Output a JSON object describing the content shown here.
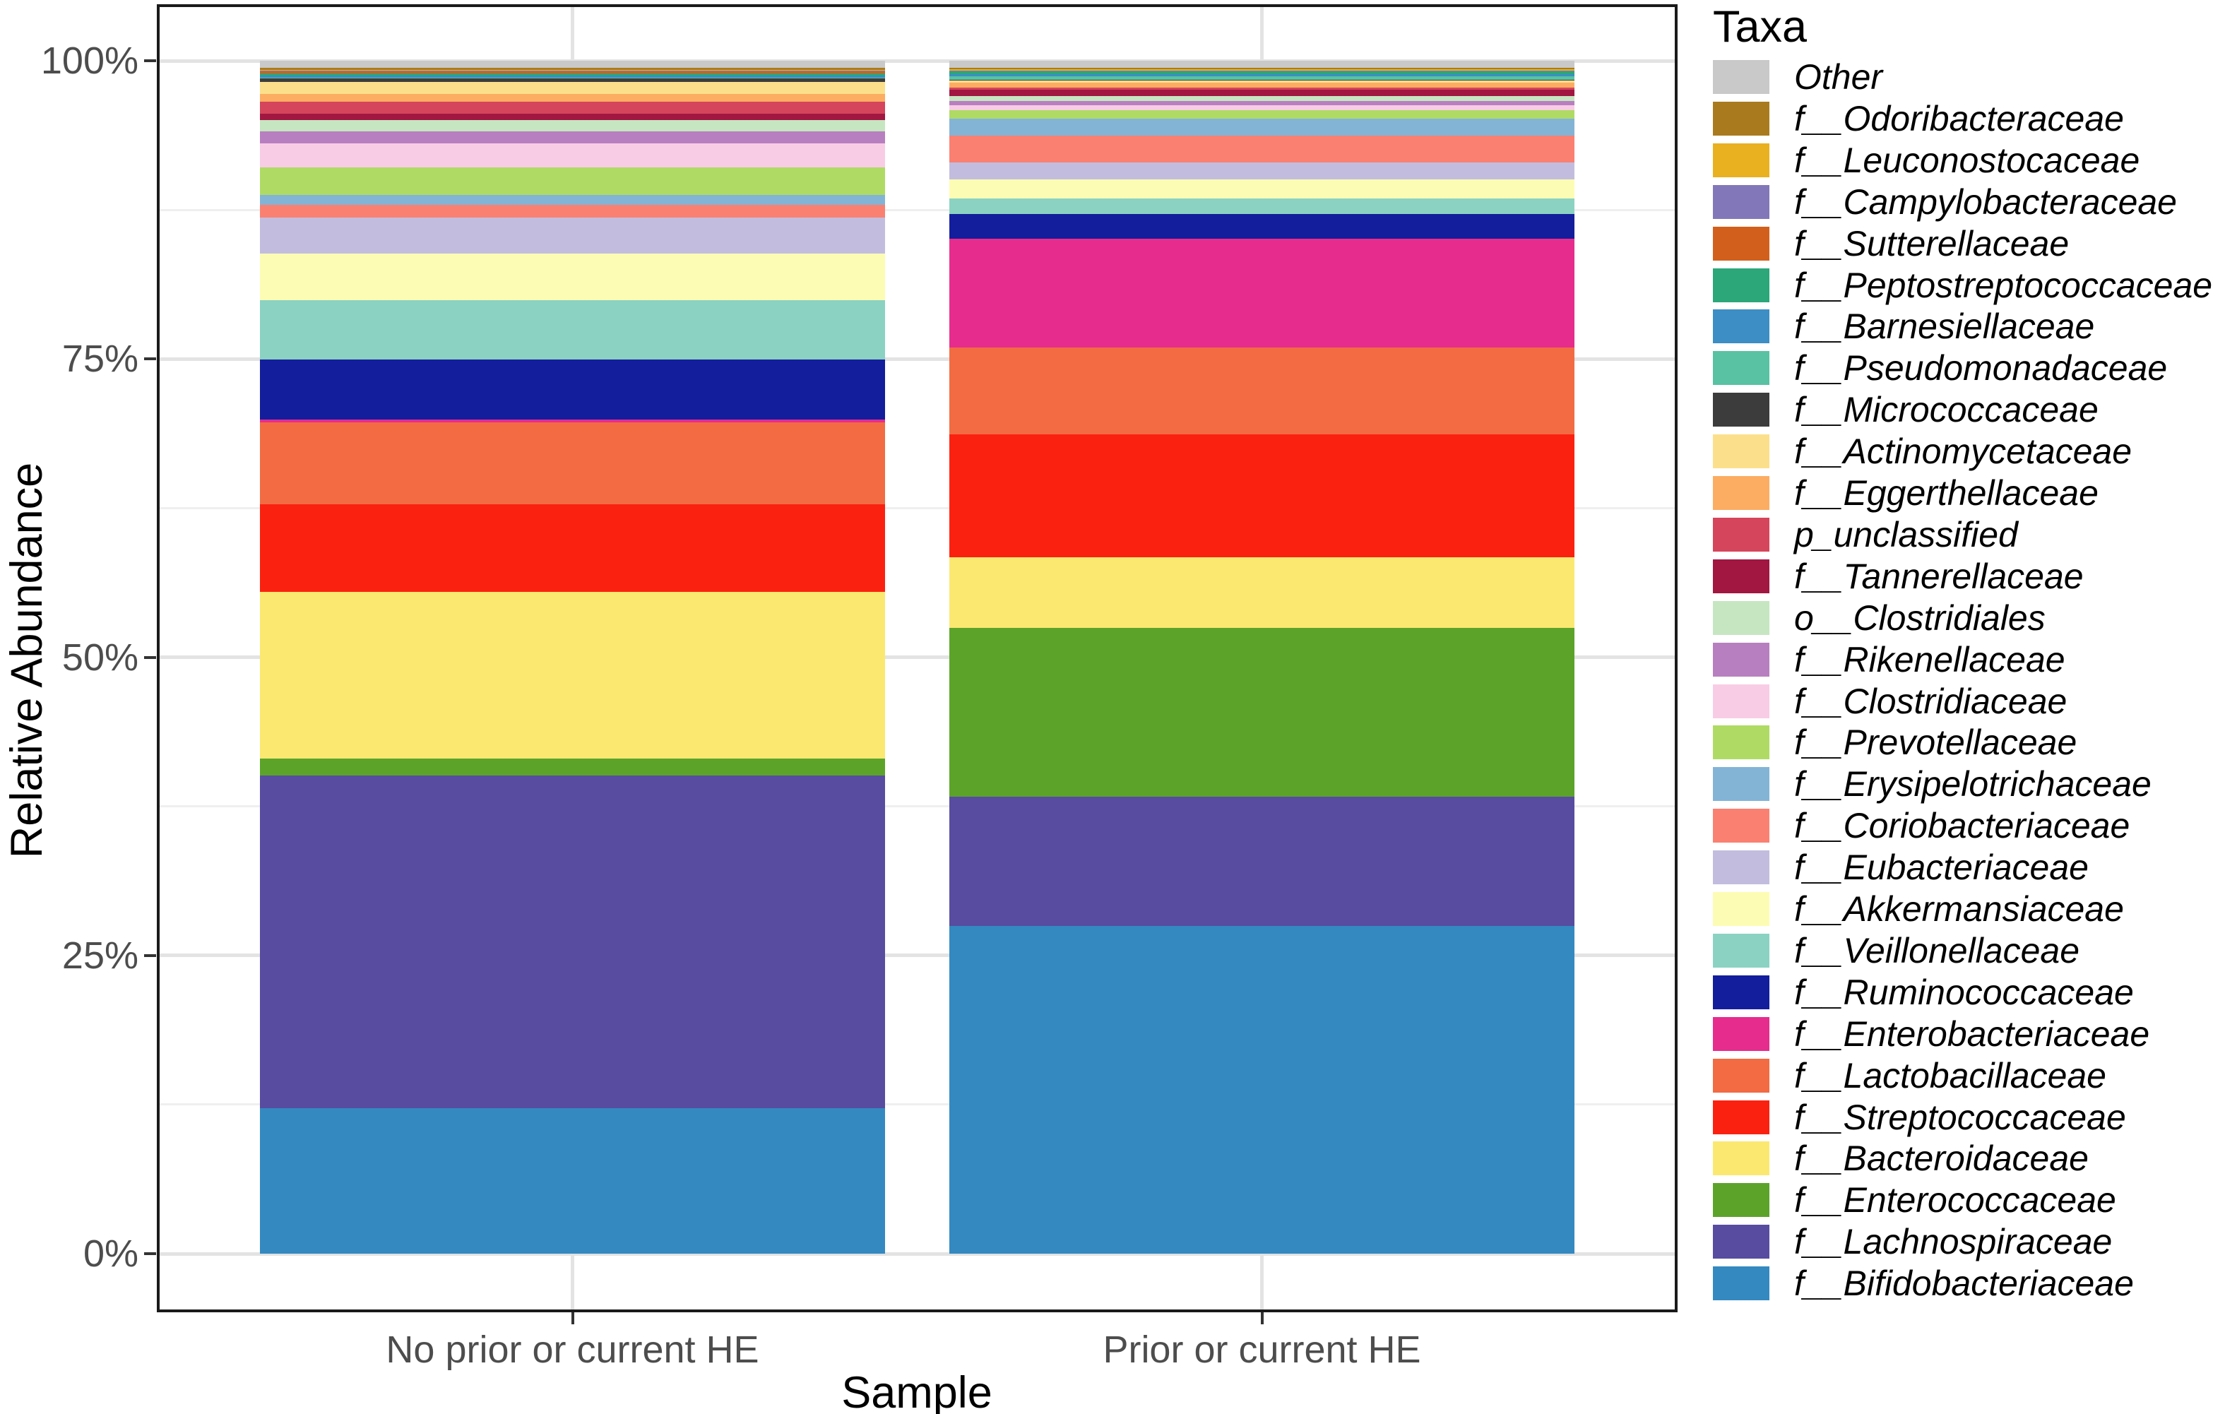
{
  "chart_data": {
    "type": "bar",
    "stacked": true,
    "percent_scale": true,
    "title": "",
    "xlabel": "Sample",
    "ylabel": "Relative Abundance",
    "legend_title": "Taxa",
    "legend_position": "right",
    "grid": "major-and-minor",
    "ylim": [
      0,
      100
    ],
    "y_ticks": [
      {
        "label": "0%",
        "value": 0
      },
      {
        "label": "25%",
        "value": 25
      },
      {
        "label": "50%",
        "value": 50
      },
      {
        "label": "75%",
        "value": 75
      },
      {
        "label": "100%",
        "value": 100
      }
    ],
    "categories": [
      "No prior or current HE",
      "Prior or current HE"
    ],
    "series": [
      {
        "name": "Other",
        "color": "#c9c9c9",
        "values": [
          0.6,
          0.6
        ]
      },
      {
        "name": "f__Odoribacteraceae",
        "color": "#a97b1e",
        "values": [
          0.15,
          0.1
        ]
      },
      {
        "name": "f__Leuconostocaceae",
        "color": "#e9b01f",
        "values": [
          0.05,
          0.1
        ]
      },
      {
        "name": "f__Campylobacteraceae",
        "color": "#8177b9",
        "values": [
          0.05,
          0.05
        ]
      },
      {
        "name": "f__Sutterellaceae",
        "color": "#d2601c",
        "values": [
          0.2,
          0.05
        ]
      },
      {
        "name": "f__Peptostreptococcaceae",
        "color": "#2ba77a",
        "values": [
          0.2,
          0.2
        ]
      },
      {
        "name": "f__Barnesiellaceae",
        "color": "#3c8ec4",
        "values": [
          0.2,
          0.2
        ]
      },
      {
        "name": "f__Pseudomonadaceae",
        "color": "#58c2a2",
        "values": [
          0.05,
          0.3
        ]
      },
      {
        "name": "f__Micrococcaceae",
        "color": "#3c3c3c",
        "values": [
          0.3,
          0.05
        ]
      },
      {
        "name": "f__Actinomycetaceae",
        "color": "#fcdf8b",
        "values": [
          1.0,
          0.2
        ]
      },
      {
        "name": "f__Eggerthellaceae",
        "color": "#fcad62",
        "values": [
          0.65,
          0.4
        ]
      },
      {
        "name": "p_unclassified",
        "color": "#d5455b",
        "values": [
          1.0,
          0.2
        ]
      },
      {
        "name": "f__Tannerellaceae",
        "color": "#a11742",
        "values": [
          0.5,
          0.5
        ]
      },
      {
        "name": "o__Clostridiales",
        "color": "#c6e6c1",
        "values": [
          1.0,
          0.4
        ]
      },
      {
        "name": "f__Rikenellaceae",
        "color": "#b87fc0",
        "values": [
          1.0,
          0.4
        ]
      },
      {
        "name": "f__Clostridiaceae",
        "color": "#f9cce5",
        "values": [
          2.0,
          0.4
        ]
      },
      {
        "name": "f__Prevotellaceae",
        "color": "#afdb64",
        "values": [
          2.3,
          0.7
        ]
      },
      {
        "name": "f__Erysipelotrichaceae",
        "color": "#83b4d6",
        "values": [
          0.8,
          1.4
        ]
      },
      {
        "name": "f__Coriobacteriaceae",
        "color": "#fa8072",
        "values": [
          1.1,
          2.3
        ]
      },
      {
        "name": "f__Eubacteriaceae",
        "color": "#c2bdde",
        "values": [
          3.0,
          1.4
        ]
      },
      {
        "name": "f__Akkermansiaceae",
        "color": "#fdfcb4",
        "values": [
          3.9,
          1.6
        ]
      },
      {
        "name": "f__Veillonellaceae",
        "color": "#8bd2c2",
        "values": [
          5.0,
          1.3
        ]
      },
      {
        "name": "f__Ruminococcaceae",
        "color": "#131e9c",
        "values": [
          5.0,
          2.1
        ]
      },
      {
        "name": "f__Enterobacteriaceae",
        "color": "#e62c8d",
        "values": [
          0.25,
          9.1
        ]
      },
      {
        "name": "f__Lactobacillaceae",
        "color": "#f26b43",
        "values": [
          6.9,
          7.3
        ]
      },
      {
        "name": "f__Streptococcaceae",
        "color": "#fb2110",
        "values": [
          7.3,
          10.3
        ]
      },
      {
        "name": "f__Bacteroidaceae",
        "color": "#fbe871",
        "values": [
          14.0,
          5.9
        ]
      },
      {
        "name": "f__Enterococcaceae",
        "color": "#5ca32a",
        "values": [
          1.4,
          14.2
        ]
      },
      {
        "name": "f__Lachnospiraceae",
        "color": "#574ca0",
        "values": [
          27.9,
          10.8
        ]
      },
      {
        "name": "f__Bifidobacteriaceae",
        "color": "#3489c1",
        "values": [
          12.2,
          27.5
        ]
      }
    ]
  }
}
